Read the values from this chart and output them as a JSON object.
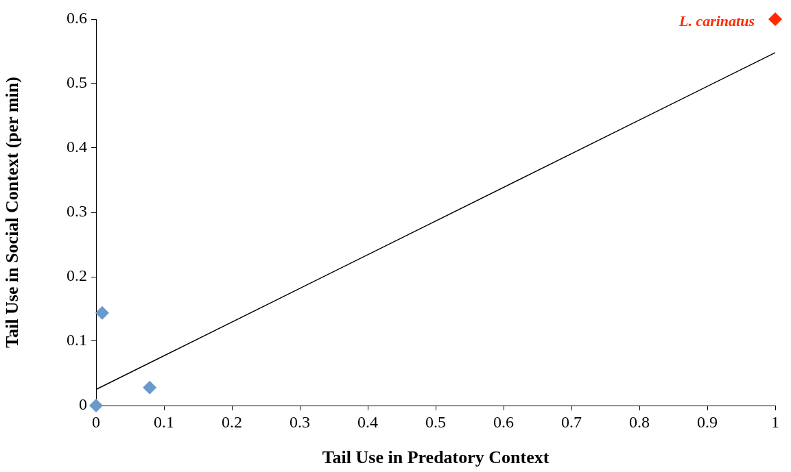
{
  "chart_data": {
    "type": "scatter",
    "xlabel": "Tail Use in Predatory Context",
    "ylabel": "Tail Use in Social Context (per min)",
    "xlim": [
      0,
      1
    ],
    "xticks": [
      0,
      0.1,
      0.2,
      0.3,
      0.4,
      0.5,
      0.6,
      0.7,
      0.8,
      0.9,
      1
    ],
    "ylim": [
      0,
      0.6
    ],
    "yticks": [
      0,
      0.1,
      0.2,
      0.3,
      0.4,
      0.5,
      0.6
    ],
    "grid": false,
    "legend": false,
    "marker": "diamond",
    "series": [
      {
        "color": "#6a99cc",
        "x": [
          0,
          0.009,
          0.079
        ],
        "values": [
          0,
          0.144,
          0.028
        ]
      },
      {
        "name": "L. carinatus",
        "color": "#ff2a00",
        "x": [
          1
        ],
        "values": [
          0.6
        ]
      },
      {
        "type": "line",
        "color": "#000000",
        "marker": "none",
        "x": [
          0,
          1
        ],
        "values": [
          0.025,
          0.548
        ]
      }
    ]
  }
}
